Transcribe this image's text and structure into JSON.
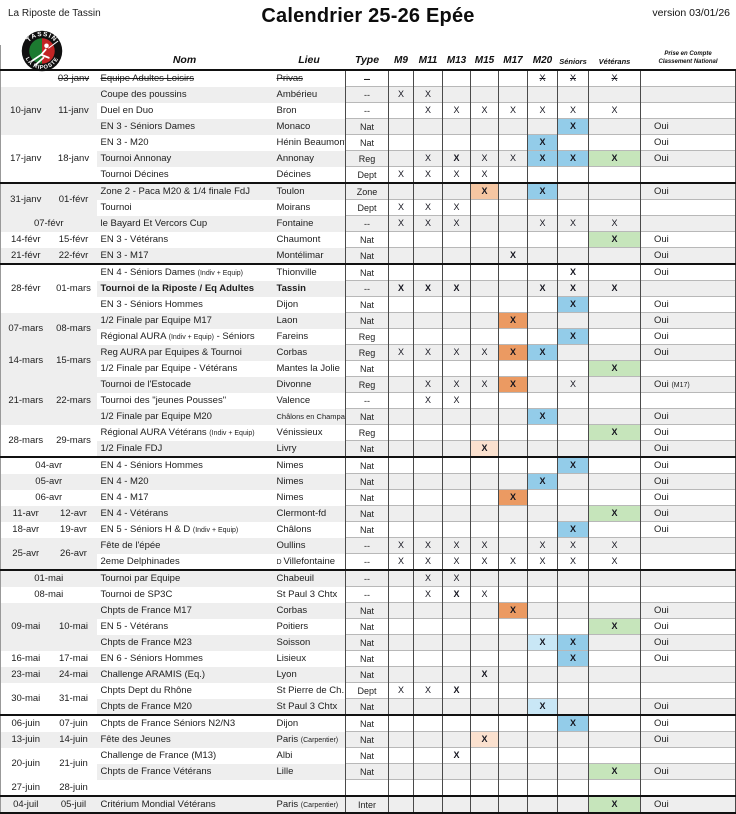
{
  "page": {
    "club": "La Riposte de Tassin",
    "title": "Calendrier 25-26 Epée",
    "version": "version 03/01/26"
  },
  "logo": {
    "top_text": "TASSIN",
    "bottom_text": "LA RIPOSTE"
  },
  "palette": {
    "blue": "#93cce9",
    "blueLight": "#c9e7f6",
    "orange": "#eb9a62",
    "peach": "#f5c6a2",
    "peachLight": "#fbe1cf",
    "green": "#c6e5bb",
    "band": "#eeeeee"
  },
  "columns": {
    "nom": "Nom",
    "lieu": "Lieu",
    "type": "Type",
    "cats": [
      "M9",
      "M11",
      "M13",
      "M15",
      "M17",
      "M20",
      "Séniors",
      "Vétérans"
    ],
    "nat_line1": "Prise en Compte",
    "nat_line2": "Classement National"
  },
  "rows": [
    {
      "strike": 1,
      "g": {
        "d1": "",
        "d2": "03-janv"
      },
      "nom": "Equipe Adultes Loisirs",
      "lieu": "Privas",
      "type": "--",
      "marks": [
        {
          "c": "M20"
        },
        {
          "c": "SEN"
        },
        {
          "c": "VET"
        }
      ],
      "nat": ""
    },
    {
      "g": {
        "d1": "10-janv",
        "d2": "11-janv",
        "span": 3
      },
      "nom": "Coupe des poussins",
      "lieu": "Ambérieu",
      "type": "--",
      "marks": [
        {
          "c": "M9"
        },
        {
          "c": "M11"
        }
      ],
      "nat": ""
    },
    {
      "nom": "Duel en Duo",
      "lieu": "Bron",
      "type": "--",
      "marks": [
        {
          "c": "M11"
        },
        {
          "c": "M13"
        },
        {
          "c": "M15"
        },
        {
          "c": "M17"
        },
        {
          "c": "M20"
        },
        {
          "c": "SEN"
        },
        {
          "c": "VET"
        }
      ],
      "nat": ""
    },
    {
      "nom": "EN 3 - Séniors Dames",
      "lieu": "Monaco",
      "type": "Nat",
      "marks": [
        {
          "c": "SEN",
          "bg": "blue",
          "b": 1
        }
      ],
      "nat": "Oui"
    },
    {
      "g": {
        "d1": "17-janv",
        "d2": "18-janv",
        "span": 3
      },
      "nom": "EN 3 - M20",
      "lieu": "Hénin Beaumont",
      "type": "Nat",
      "marks": [
        {
          "c": "M20",
          "bg": "blue",
          "b": 1
        }
      ],
      "nat": "Oui"
    },
    {
      "nom": "Tournoi Annonay",
      "lieu": "Annonay",
      "type": "Reg",
      "marks": [
        {
          "c": "M11"
        },
        {
          "c": "M13",
          "b": 1
        },
        {
          "c": "M15"
        },
        {
          "c": "M17"
        },
        {
          "c": "M20",
          "bg": "blue",
          "b": 1
        },
        {
          "c": "SEN",
          "bg": "blue",
          "b": 1
        },
        {
          "c": "VET",
          "bg": "green",
          "b": 1
        }
      ],
      "nat": "Oui"
    },
    {
      "nom": "Tournoi Décines",
      "lieu": "Décines",
      "type": "Dept",
      "marks": [
        {
          "c": "M9"
        },
        {
          "c": "M11"
        },
        {
          "c": "M13"
        },
        {
          "c": "M15"
        }
      ],
      "nat": ""
    },
    {
      "sec": 1,
      "g": {
        "d1": "31-janv",
        "d2": "01-févr",
        "span": 2
      },
      "nom": "Zone 2 - Paca M20 & 1/4 finale FdJ",
      "lieu": "Toulon",
      "type": "Zone",
      "marks": [
        {
          "c": "M15",
          "bg": "peach",
          "b": 1
        },
        {
          "c": "M20",
          "bg": "blue",
          "b": 1
        }
      ],
      "nat": "Oui"
    },
    {
      "nom": "Tournoi",
      "lieu": "Moirans",
      "type": "Dept",
      "marks": [
        {
          "c": "M9"
        },
        {
          "c": "M11"
        },
        {
          "c": "M13"
        }
      ],
      "nat": ""
    },
    {
      "g": {
        "d": "07-févr"
      },
      "nom": "le Bayard Et Vercors Cup",
      "lieu": "Fontaine",
      "type": "--",
      "marks": [
        {
          "c": "M9"
        },
        {
          "c": "M11"
        },
        {
          "c": "M13"
        },
        {
          "c": "M20"
        },
        {
          "c": "SEN"
        },
        {
          "c": "VET"
        }
      ],
      "nat": ""
    },
    {
      "g": {
        "d1": "14-févr",
        "d2": "15-févr"
      },
      "nom": "EN 3 - Vétérans",
      "lieu": "Chaumont",
      "type": "Nat",
      "marks": [
        {
          "c": "VET",
          "bg": "green",
          "b": 1
        }
      ],
      "nat": "Oui"
    },
    {
      "g": {
        "d1": "21-févr",
        "d2": "22-févr"
      },
      "nom": "EN 3 - M17",
      "lieu": "Montélimar",
      "type": "Nat",
      "marks": [
        {
          "c": "M17",
          "b": 1
        }
      ],
      "nat": "Oui"
    },
    {
      "sec": 1,
      "g": {
        "d1": "28-févr",
        "d2": "01-mars",
        "span": 3
      },
      "nom": "EN 4 - Séniors Dames ",
      "nomSm": "(Indiv + Equip)",
      "lieu": "Thionville",
      "type": "Nat",
      "marks": [
        {
          "c": "SEN",
          "b": 1
        }
      ],
      "nat": "Oui"
    },
    {
      "b": 1,
      "nom": "Tournoi de la Riposte / Eq Adultes",
      "lieu": "Tassin",
      "type": "--",
      "marks": [
        {
          "c": "M9",
          "b": 1
        },
        {
          "c": "M11",
          "b": 1
        },
        {
          "c": "M13",
          "b": 1
        },
        {
          "c": "M20",
          "b": 1
        },
        {
          "c": "SEN",
          "b": 1
        },
        {
          "c": "VET",
          "b": 1
        }
      ],
      "nat": ""
    },
    {
      "nom": "EN 3 - Séniors Hommes",
      "lieu": "Dijon",
      "type": "Nat",
      "marks": [
        {
          "c": "SEN",
          "bg": "blue",
          "b": 1
        }
      ],
      "nat": "Oui"
    },
    {
      "g": {
        "d1": "07-mars",
        "d2": "08-mars",
        "span": 2
      },
      "nom": "1/2 Finale par Equipe M17",
      "lieu": "Laon",
      "type": "Nat",
      "marks": [
        {
          "c": "M17",
          "bg": "orange",
          "b": 1
        }
      ],
      "nat": "Oui"
    },
    {
      "nom": "Régional AURA ",
      "nomSm": "(Indiv + Equip)",
      "nomEnd": " - Séniors",
      "lieu": "Fareins",
      "type": "Reg",
      "marks": [
        {
          "c": "SEN",
          "bg": "blue",
          "b": 1
        }
      ],
      "nat": "Oui"
    },
    {
      "g": {
        "d1": "14-mars",
        "d2": "15-mars",
        "span": 2
      },
      "nom": "Reg AURA par Equipes & Tournoi",
      "lieu": "Corbas",
      "type": "Reg",
      "marks": [
        {
          "c": "M9"
        },
        {
          "c": "M11"
        },
        {
          "c": "M13"
        },
        {
          "c": "M15"
        },
        {
          "c": "M17",
          "bg": "orange",
          "b": 1
        },
        {
          "c": "M20",
          "bg": "blue",
          "b": 1
        }
      ],
      "nat": "Oui"
    },
    {
      "nom": "1/2 Finale par Equipe - Vétérans",
      "lieu": "Mantes la Jolie",
      "type": "Nat",
      "marks": [
        {
          "c": "VET",
          "bg": "green",
          "b": 1
        }
      ],
      "nat": ""
    },
    {
      "g": {
        "d1": "21-mars",
        "d2": "22-mars",
        "span": 3
      },
      "nom": "Tournoi de l'Estocade",
      "lieu": "Divonne",
      "type": "Reg",
      "marks": [
        {
          "c": "M11"
        },
        {
          "c": "M13"
        },
        {
          "c": "M15"
        },
        {
          "c": "M17",
          "bg": "orange",
          "b": 1
        },
        {
          "c": "SEN"
        }
      ],
      "nat": "Oui ",
      "natSm": "(M17)"
    },
    {
      "nom": "Tournoi des \"jeunes Pousses\"",
      "lieu": "Valence",
      "type": "--",
      "marks": [
        {
          "c": "M11"
        },
        {
          "c": "M13"
        }
      ],
      "nat": ""
    },
    {
      "nom": "1/2 Finale par Equipe M20",
      "lieu": "Châlons en Champagne",
      "lieuShrink": 1,
      "type": "Nat",
      "marks": [
        {
          "c": "M20",
          "bg": "blue",
          "b": 1
        }
      ],
      "nat": "Oui"
    },
    {
      "g": {
        "d1": "28-mars",
        "d2": "29-mars",
        "span": 2
      },
      "nom": "Régional AURA Vétérans ",
      "nomSm": "(Indiv + Equip)",
      "lieu": "Vénissieux",
      "type": "Reg",
      "marks": [
        {
          "c": "VET",
          "bg": "green",
          "b": 1
        }
      ],
      "nat": "Oui"
    },
    {
      "nom": "1/2 Finale FDJ",
      "lieu": "Livry",
      "type": "Nat",
      "marks": [
        {
          "c": "M15",
          "bg": "peachLight",
          "b": 1
        }
      ],
      "nat": "Oui"
    },
    {
      "sec": 1,
      "g": {
        "d": "04-avr"
      },
      "nom": "EN 4 - Séniors Hommes",
      "lieu": "Nimes",
      "type": "Nat",
      "marks": [
        {
          "c": "SEN",
          "bg": "blue",
          "b": 1
        }
      ],
      "nat": "Oui"
    },
    {
      "g": {
        "d": "05-avr"
      },
      "nom": "EN 4 - M20",
      "lieu": "Nimes",
      "type": "Nat",
      "marks": [
        {
          "c": "M20",
          "bg": "blue",
          "b": 1
        }
      ],
      "nat": "Oui"
    },
    {
      "g": {
        "d": "06-avr"
      },
      "nom": "EN 4 - M17",
      "lieu": "Nimes",
      "type": "Nat",
      "marks": [
        {
          "c": "M17",
          "bg": "orange",
          "b": 1
        }
      ],
      "nat": "Oui"
    },
    {
      "g": {
        "d1": "11-avr",
        "d2": "12-avr"
      },
      "nom": "EN 4 - Vétérans",
      "lieu": "Clermont-fd",
      "type": "Nat",
      "marks": [
        {
          "c": "VET",
          "bg": "green",
          "b": 1
        }
      ],
      "nat": "Oui"
    },
    {
      "g": {
        "d1": "18-avr",
        "d2": "19-avr"
      },
      "nom": "EN 5 - Séniors H & D ",
      "nomSm": "(Indiv + Equip)",
      "lieu": "Châlons",
      "type": "Nat",
      "marks": [
        {
          "c": "SEN",
          "bg": "blue",
          "b": 1
        }
      ],
      "nat": "Oui"
    },
    {
      "g": {
        "d1": "25-avr",
        "d2": "26-avr",
        "span": 2
      },
      "nom": "Fête de l'épée",
      "lieu": "Oullins",
      "type": "--",
      "marks": [
        {
          "c": "M9"
        },
        {
          "c": "M11"
        },
        {
          "c": "M13"
        },
        {
          "c": "M15"
        },
        {
          "c": "M20"
        },
        {
          "c": "SEN"
        },
        {
          "c": "VET"
        }
      ],
      "nat": ""
    },
    {
      "nom": "2eme Delphinades",
      "lieu": "Villefontaine",
      "lieuPre": "D ",
      "type": "--",
      "marks": [
        {
          "c": "M9"
        },
        {
          "c": "M11"
        },
        {
          "c": "M13"
        },
        {
          "c": "M15"
        },
        {
          "c": "M17"
        },
        {
          "c": "M20"
        },
        {
          "c": "SEN"
        },
        {
          "c": "VET"
        }
      ],
      "nat": ""
    },
    {
      "sec": 1,
      "g": {
        "d": "01-mai"
      },
      "nom": "Tournoi par Equipe",
      "lieu": "Chabeuil",
      "type": "--",
      "marks": [
        {
          "c": "M11"
        },
        {
          "c": "M13"
        }
      ],
      "nat": ""
    },
    {
      "g": {
        "d": "08-mai"
      },
      "nom": "Tournoi de SP3C",
      "lieu": "St Paul 3 Chtx",
      "type": "--",
      "marks": [
        {
          "c": "M11"
        },
        {
          "c": "M13",
          "b": 1
        },
        {
          "c": "M15"
        }
      ],
      "nat": ""
    },
    {
      "g": {
        "d1": "09-mai",
        "d2": "10-mai",
        "span": 3
      },
      "nom": "Chpts de France M17",
      "lieu": "Corbas",
      "type": "Nat",
      "marks": [
        {
          "c": "M17",
          "bg": "orange",
          "b": 1
        }
      ],
      "nat": "Oui"
    },
    {
      "nom": "EN 5 - Vétérans",
      "lieu": "Poitiers",
      "type": "Nat",
      "marks": [
        {
          "c": "VET",
          "bg": "green",
          "b": 1
        }
      ],
      "nat": "Oui"
    },
    {
      "nom": "Chpts de France M23",
      "lieu": "Soisson",
      "type": "Nat",
      "marks": [
        {
          "c": "M20",
          "bg": "blueLight",
          "b": 1
        },
        {
          "c": "SEN",
          "bg": "blue",
          "b": 1
        }
      ],
      "nat": "Oui"
    },
    {
      "g": {
        "d1": "16-mai",
        "d2": "17-mai"
      },
      "nom": "EN 6 - Séniors Hommes",
      "lieu": "Lisieux",
      "type": "Nat",
      "marks": [
        {
          "c": "SEN",
          "bg": "blue",
          "b": 1
        }
      ],
      "nat": "Oui"
    },
    {
      "g": {
        "d1": "23-mai",
        "d2": "24-mai"
      },
      "nom": "Challenge ARAMIS (Eq.)",
      "lieu": "Lyon",
      "type": "Nat",
      "marks": [
        {
          "c": "M15",
          "b": 1
        }
      ],
      "nat": ""
    },
    {
      "g": {
        "d1": "30-mai",
        "d2": "31-mai",
        "span": 2
      },
      "nom": "Chpts Dept du Rhône",
      "lieu": "St Pierre de Ch.",
      "type": "Dept",
      "marks": [
        {
          "c": "M9"
        },
        {
          "c": "M11"
        },
        {
          "c": "M13",
          "b": 1
        }
      ],
      "nat": ""
    },
    {
      "nom": "Chpts de France M20",
      "lieu": "St Paul 3 Chtx",
      "type": "Nat",
      "marks": [
        {
          "c": "M20",
          "bg": "blueLight",
          "b": 1
        }
      ],
      "nat": "Oui"
    },
    {
      "sec": 1,
      "g": {
        "d1": "06-juin",
        "d2": "07-juin"
      },
      "nom": "Chpts de France Séniors N2/N3",
      "lieu": "Dijon",
      "type": "Nat",
      "marks": [
        {
          "c": "SEN",
          "bg": "blue",
          "b": 1
        }
      ],
      "nat": "Oui"
    },
    {
      "g": {
        "d1": "13-juin",
        "d2": "14-juin"
      },
      "nom": "Fête des Jeunes",
      "lieu": "Paris ",
      "lieuSm": "(Carpentier)",
      "type": "Nat",
      "marks": [
        {
          "c": "M15",
          "bg": "peachLight",
          "b": 1
        }
      ],
      "nat": "Oui"
    },
    {
      "g": {
        "d1": "20-juin",
        "d2": "21-juin",
        "span": 2
      },
      "nom": "Challenge de France (M13)",
      "lieu": "Albi",
      "type": "Nat",
      "marks": [
        {
          "c": "M13",
          "b": 1
        }
      ],
      "nat": ""
    },
    {
      "nom": "Chpts de France Vétérans",
      "lieu": "Lille",
      "type": "Nat",
      "marks": [
        {
          "c": "VET",
          "bg": "green",
          "b": 1
        }
      ],
      "nat": "Oui"
    },
    {
      "g": {
        "d1": "27-juin",
        "d2": "28-juin"
      },
      "nom": "",
      "lieu": "",
      "type": "",
      "marks": [],
      "nat": ""
    },
    {
      "sec": 1,
      "g": {
        "d1": "04-juil",
        "d2": "05-juil"
      },
      "nom": "Critérium Mondial Vétérans",
      "lieu": "Paris ",
      "lieuSm": "(Carpentier)",
      "type": "Inter",
      "marks": [
        {
          "c": "VET",
          "bg": "green",
          "b": 1
        }
      ],
      "nat": "Oui"
    }
  ]
}
